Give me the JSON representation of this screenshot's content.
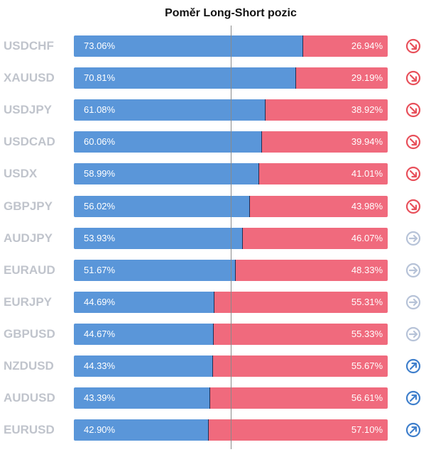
{
  "colors": {
    "long": "#5a96d9",
    "short": "#f06a7d",
    "signal_down": "#e8505b",
    "signal_neutral": "#b7c3d8",
    "signal_up": "#3f7fcc"
  },
  "chart_data": {
    "type": "bar",
    "title": "Poměr Long-Short pozic",
    "stacked": true,
    "orientation": "horizontal",
    "xlim": [
      0,
      100
    ],
    "grid": false,
    "categories": [
      "USDCHF",
      "XAUUSD",
      "USDJPY",
      "USDCAD",
      "USDX",
      "GBPJPY",
      "AUDJPY",
      "EURAUD",
      "EURJPY",
      "GBPUSD",
      "NZDUSD",
      "AUDUSD",
      "EURUSD"
    ],
    "rows": [
      {
        "symbol": "USDCHF",
        "long": 73.06,
        "short": 26.94,
        "long_label": "73.06%",
        "short_label": "26.94%",
        "signal": "arrow-down-right-icon"
      },
      {
        "symbol": "XAUUSD",
        "long": 70.81,
        "short": 29.19,
        "long_label": "70.81%",
        "short_label": "29.19%",
        "signal": "arrow-down-right-icon"
      },
      {
        "symbol": "USDJPY",
        "long": 61.08,
        "short": 38.92,
        "long_label": "61.08%",
        "short_label": "38.92%",
        "signal": "arrow-down-right-icon"
      },
      {
        "symbol": "USDCAD",
        "long": 60.06,
        "short": 39.94,
        "long_label": "60.06%",
        "short_label": "39.94%",
        "signal": "arrow-down-right-icon"
      },
      {
        "symbol": "USDX",
        "long": 58.99,
        "short": 41.01,
        "long_label": "58.99%",
        "short_label": "41.01%",
        "signal": "arrow-down-right-icon"
      },
      {
        "symbol": "GBPJPY",
        "long": 56.02,
        "short": 43.98,
        "long_label": "56.02%",
        "short_label": "43.98%",
        "signal": "arrow-down-right-icon"
      },
      {
        "symbol": "AUDJPY",
        "long": 53.93,
        "short": 46.07,
        "long_label": "53.93%",
        "short_label": "46.07%",
        "signal": "arrow-right-icon"
      },
      {
        "symbol": "EURAUD",
        "long": 51.67,
        "short": 48.33,
        "long_label": "51.67%",
        "short_label": "48.33%",
        "signal": "arrow-right-icon"
      },
      {
        "symbol": "EURJPY",
        "long": 44.69,
        "short": 55.31,
        "long_label": "44.69%",
        "short_label": "55.31%",
        "signal": "arrow-right-icon"
      },
      {
        "symbol": "GBPUSD",
        "long": 44.67,
        "short": 55.33,
        "long_label": "44.67%",
        "short_label": "55.33%",
        "signal": "arrow-right-icon"
      },
      {
        "symbol": "NZDUSD",
        "long": 44.33,
        "short": 55.67,
        "long_label": "44.33%",
        "short_label": "55.67%",
        "signal": "arrow-up-right-icon"
      },
      {
        "symbol": "AUDUSD",
        "long": 43.39,
        "short": 56.61,
        "long_label": "43.39%",
        "short_label": "56.61%",
        "signal": "arrow-up-right-icon"
      },
      {
        "symbol": "EURUSD",
        "long": 42.9,
        "short": 57.1,
        "long_label": "42.90%",
        "short_label": "57.10%",
        "signal": "arrow-up-right-icon"
      }
    ]
  }
}
